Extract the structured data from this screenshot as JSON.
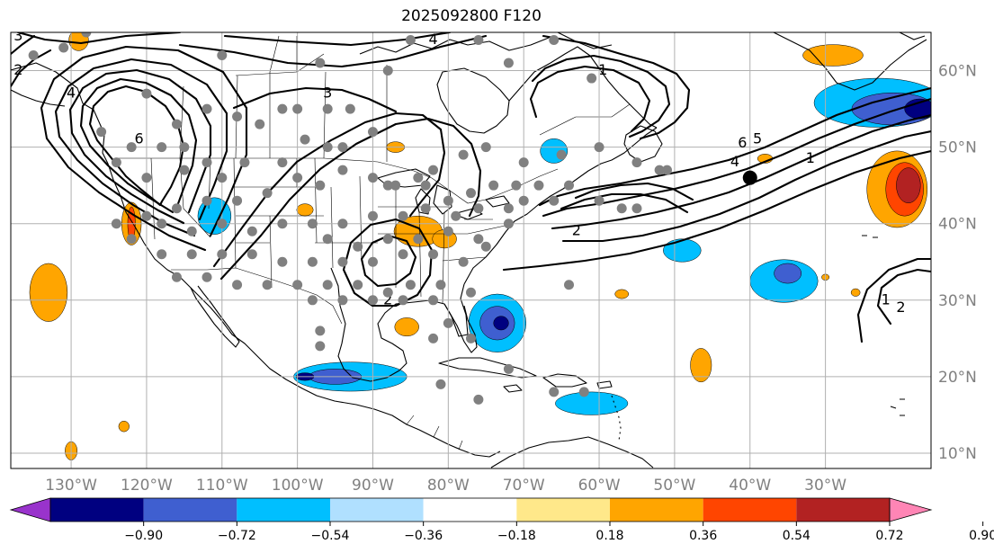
{
  "title": "2025092800 F120",
  "map": {
    "projection": "plate-carree",
    "lon_range": [
      -138,
      -16
    ],
    "lat_range": [
      8,
      65
    ],
    "gridlines": true,
    "grid_color": "#b0b0b0",
    "lon_ticks": [
      {
        "lon": -130,
        "label": "130°W"
      },
      {
        "lon": -120,
        "label": "120°W"
      },
      {
        "lon": -110,
        "label": "110°W"
      },
      {
        "lon": -100,
        "label": "100°W"
      },
      {
        "lon": -90,
        "label": "90°W"
      },
      {
        "lon": -80,
        "label": "80°W"
      },
      {
        "lon": -70,
        "label": "70°W"
      },
      {
        "lon": -60,
        "label": "60°W"
      },
      {
        "lon": -50,
        "label": "50°W"
      },
      {
        "lon": -40,
        "label": "40°W"
      },
      {
        "lon": -30,
        "label": "30°W"
      }
    ],
    "lat_ticks": [
      {
        "lat": 60,
        "label": "60°N"
      },
      {
        "lat": 50,
        "label": "50°N"
      },
      {
        "lat": 40,
        "label": "40°N"
      },
      {
        "lat": 30,
        "label": "30°N"
      },
      {
        "lat": 20,
        "label": "20°N"
      },
      {
        "lat": 10,
        "label": "10°N"
      }
    ],
    "contour_labels": [
      {
        "text": "3",
        "lon": -137,
        "lat": 64.5
      },
      {
        "text": "2",
        "lon": -137,
        "lat": 60
      },
      {
        "text": "4",
        "lon": -130,
        "lat": 57
      },
      {
        "text": "6",
        "lon": -121,
        "lat": 51
      },
      {
        "text": "3",
        "lon": -96,
        "lat": 57
      },
      {
        "text": "4",
        "lon": -82,
        "lat": 64
      },
      {
        "text": "1",
        "lon": -59.5,
        "lat": 60
      },
      {
        "text": "6",
        "lon": -41,
        "lat": 50.5
      },
      {
        "text": "5",
        "lon": -39,
        "lat": 51
      },
      {
        "text": "4",
        "lon": -42,
        "lat": 48
      },
      {
        "text": "1",
        "lon": -32,
        "lat": 48.5
      },
      {
        "text": "2",
        "lon": -63,
        "lat": 39
      },
      {
        "text": "2",
        "lon": -88,
        "lat": 30
      },
      {
        "text": "1",
        "lon": -22,
        "lat": 30
      },
      {
        "text": "2",
        "lon": -20,
        "lat": 29
      }
    ],
    "marker": {
      "lon": -40,
      "lat": 46,
      "color": "#000000"
    },
    "station_color": "#808080",
    "stations": [
      [
        -135,
        62
      ],
      [
        -131,
        63
      ],
      [
        -128,
        65
      ],
      [
        -110,
        62
      ],
      [
        -100,
        55
      ],
      [
        -97,
        61
      ],
      [
        -88,
        60
      ],
      [
        -85,
        64
      ],
      [
        -76,
        64
      ],
      [
        -66,
        64
      ],
      [
        -72,
        61
      ],
      [
        -61,
        59
      ],
      [
        -126,
        52
      ],
      [
        -122,
        50
      ],
      [
        -120,
        57
      ],
      [
        -116,
        53
      ],
      [
        -115,
        50
      ],
      [
        -112,
        55
      ],
      [
        -108,
        54
      ],
      [
        -105,
        53
      ],
      [
        -102,
        55
      ],
      [
        -96,
        55
      ],
      [
        -93,
        55
      ],
      [
        -90,
        52
      ],
      [
        -99,
        51
      ],
      [
        -96,
        50
      ],
      [
        -94,
        50
      ],
      [
        -102,
        48
      ],
      [
        -107,
        48
      ],
      [
        -112,
        48
      ],
      [
        -118,
        50
      ],
      [
        -124,
        48
      ],
      [
        -120,
        46
      ],
      [
        -115,
        47
      ],
      [
        -110,
        46
      ],
      [
        -100,
        46
      ],
      [
        -97,
        45
      ],
      [
        -94,
        47
      ],
      [
        -90,
        46
      ],
      [
        -87,
        45
      ],
      [
        -84,
        46
      ],
      [
        -82,
        47
      ],
      [
        -78,
        49
      ],
      [
        -75,
        50
      ],
      [
        -70,
        48
      ],
      [
        -65,
        49
      ],
      [
        -60,
        50
      ],
      [
        -55,
        48
      ],
      [
        -51,
        47
      ],
      [
        -104,
        44
      ],
      [
        -108,
        43
      ],
      [
        -112,
        43
      ],
      [
        -116,
        42
      ],
      [
        -120,
        41
      ],
      [
        -124,
        40
      ],
      [
        -122,
        38
      ],
      [
        -118,
        40
      ],
      [
        -114,
        39
      ],
      [
        -110,
        40
      ],
      [
        -106,
        39
      ],
      [
        -102,
        40
      ],
      [
        -98,
        40
      ],
      [
        -94,
        40
      ],
      [
        -90,
        41
      ],
      [
        -86,
        41
      ],
      [
        -83,
        42
      ],
      [
        -80,
        43
      ],
      [
        -77,
        44
      ],
      [
        -74,
        45
      ],
      [
        -71,
        45
      ],
      [
        -68,
        45
      ],
      [
        -64,
        45
      ],
      [
        -60,
        43
      ],
      [
        -57,
        42
      ],
      [
        -88,
        45
      ],
      [
        -83,
        45
      ],
      [
        -79,
        41
      ],
      [
        -76,
        42
      ],
      [
        -72,
        42
      ],
      [
        -70,
        43
      ],
      [
        -96,
        38
      ],
      [
        -92,
        37
      ],
      [
        -88,
        38
      ],
      [
        -84,
        38
      ],
      [
        -80,
        39
      ],
      [
        -76,
        38
      ],
      [
        -72,
        40
      ],
      [
        -118,
        36
      ],
      [
        -114,
        36
      ],
      [
        -110,
        36
      ],
      [
        -106,
        36
      ],
      [
        -102,
        35
      ],
      [
        -98,
        35
      ],
      [
        -94,
        35
      ],
      [
        -90,
        35
      ],
      [
        -86,
        36
      ],
      [
        -82,
        36
      ],
      [
        -78,
        35
      ],
      [
        -75,
        37
      ],
      [
        -116,
        33
      ],
      [
        -112,
        33
      ],
      [
        -108,
        32
      ],
      [
        -104,
        32
      ],
      [
        -100,
        32
      ],
      [
        -96,
        32
      ],
      [
        -92,
        32
      ],
      [
        -88,
        31
      ],
      [
        -85,
        32
      ],
      [
        -81,
        32
      ],
      [
        -77,
        31
      ],
      [
        -98,
        30
      ],
      [
        -94,
        30
      ],
      [
        -90,
        30
      ],
      [
        -86,
        30
      ],
      [
        -82,
        30
      ],
      [
        -80,
        27
      ],
      [
        -82,
        25
      ],
      [
        -97,
        26
      ],
      [
        -97,
        24
      ],
      [
        -77,
        25
      ],
      [
        -72,
        21
      ],
      [
        -81,
        19
      ],
      [
        -76,
        17
      ],
      [
        -66,
        18
      ],
      [
        -62,
        18
      ],
      [
        -64,
        32
      ],
      [
        -55,
        42
      ],
      [
        -52,
        47
      ],
      [
        -66,
        43
      ]
    ],
    "anomaly_cells": [
      {
        "lon": -129,
        "lat": 64,
        "rx": 1.3,
        "ry": 1.4,
        "level": 0.36
      },
      {
        "lon": -122,
        "lat": 40,
        "rx": 1.3,
        "ry": 2.8,
        "level": 0.36
      },
      {
        "lon": -122,
        "lat": 40,
        "rx": 0.5,
        "ry": 2.2,
        "level": 0.54
      },
      {
        "lon": -111,
        "lat": 41,
        "rx": 2.2,
        "ry": 2.4,
        "level": -0.36
      },
      {
        "lon": -133,
        "lat": 31,
        "rx": 2.5,
        "ry": 3.8,
        "level": 0.36
      },
      {
        "lon": -99,
        "lat": 41.8,
        "rx": 1.1,
        "ry": 0.8,
        "level": 0.36
      },
      {
        "lon": -84,
        "lat": 39,
        "rx": 3.2,
        "ry": 2.0,
        "level": 0.36
      },
      {
        "lon": -80.5,
        "lat": 38,
        "rx": 1.6,
        "ry": 1.2,
        "level": 0.36
      },
      {
        "lon": -87,
        "lat": 50,
        "rx": 1.2,
        "ry": 0.7,
        "level": 0.36
      },
      {
        "lon": -66,
        "lat": 49.5,
        "rx": 1.8,
        "ry": 1.6,
        "level": -0.36
      },
      {
        "lon": -85.5,
        "lat": 26.5,
        "rx": 1.6,
        "ry": 1.2,
        "level": 0.36
      },
      {
        "lon": -73.5,
        "lat": 27,
        "rx": 3.8,
        "ry": 3.8,
        "level": -0.36
      },
      {
        "lon": -73.5,
        "lat": 27,
        "rx": 2.3,
        "ry": 2.2,
        "level": -0.54
      },
      {
        "lon": -73,
        "lat": 27,
        "rx": 1.0,
        "ry": 0.9,
        "level": -0.72
      },
      {
        "lon": -93,
        "lat": 20,
        "rx": 7.5,
        "ry": 1.9,
        "level": -0.36
      },
      {
        "lon": -95,
        "lat": 20,
        "rx": 3.5,
        "ry": 1.0,
        "level": -0.54
      },
      {
        "lon": -99,
        "lat": 20,
        "rx": 1.2,
        "ry": 0.5,
        "level": -0.72
      },
      {
        "lon": -61,
        "lat": 16.5,
        "rx": 4.8,
        "ry": 1.5,
        "level": -0.36
      },
      {
        "lon": -57,
        "lat": 30.8,
        "rx": 0.9,
        "ry": 0.6,
        "level": 0.36
      },
      {
        "lon": -49,
        "lat": 36.5,
        "rx": 2.5,
        "ry": 1.5,
        "level": -0.36
      },
      {
        "lon": -35.5,
        "lat": 32.5,
        "rx": 4.5,
        "ry": 2.8,
        "level": -0.36
      },
      {
        "lon": -35,
        "lat": 33.5,
        "rx": 1.8,
        "ry": 1.3,
        "level": -0.54
      },
      {
        "lon": -46.5,
        "lat": 21.5,
        "rx": 1.4,
        "ry": 2.2,
        "level": 0.36
      },
      {
        "lon": -38,
        "lat": 48.5,
        "rx": 1.0,
        "ry": 0.6,
        "level": 0.36
      },
      {
        "lon": -29,
        "lat": 62,
        "rx": 4.0,
        "ry": 1.4,
        "level": 0.36
      },
      {
        "lon": -23,
        "lat": 55.8,
        "rx": 8.5,
        "ry": 3.2,
        "level": -0.36
      },
      {
        "lon": -21,
        "lat": 55,
        "rx": 5.5,
        "ry": 2.1,
        "level": -0.54
      },
      {
        "lon": -17.5,
        "lat": 55,
        "rx": 2.0,
        "ry": 1.3,
        "level": -0.72
      },
      {
        "lon": -20.5,
        "lat": 44.5,
        "rx": 4.0,
        "ry": 5.0,
        "level": 0.36
      },
      {
        "lon": -19.5,
        "lat": 44.5,
        "rx": 2.5,
        "ry": 3.5,
        "level": 0.54
      },
      {
        "lon": -19,
        "lat": 45,
        "rx": 1.6,
        "ry": 2.3,
        "level": 0.72
      },
      {
        "lon": -130,
        "lat": 10.3,
        "rx": 0.8,
        "ry": 1.2,
        "level": 0.36
      },
      {
        "lon": -123,
        "lat": 13.5,
        "rx": 0.7,
        "ry": 0.7,
        "level": 0.36
      },
      {
        "lon": -26,
        "lat": 31,
        "rx": 0.6,
        "ry": 0.5,
        "level": 0.36
      },
      {
        "lon": -30,
        "lat": 33,
        "rx": 0.5,
        "ry": 0.4,
        "level": 0.36
      }
    ]
  },
  "colorbar": {
    "colors": [
      "#9933cc",
      "#000080",
      "#3f5fd0",
      "#00bfff",
      "#b0e0ff",
      "#ffffff",
      "#ffe88a",
      "#ffa500",
      "#ff4500",
      "#b22222",
      "#ff85b5"
    ],
    "tick_labels": [
      "−0.90",
      "−0.72",
      "−0.54",
      "−0.36",
      "−0.18",
      "0.18",
      "0.36",
      "0.54",
      "0.72",
      "0.90"
    ]
  }
}
